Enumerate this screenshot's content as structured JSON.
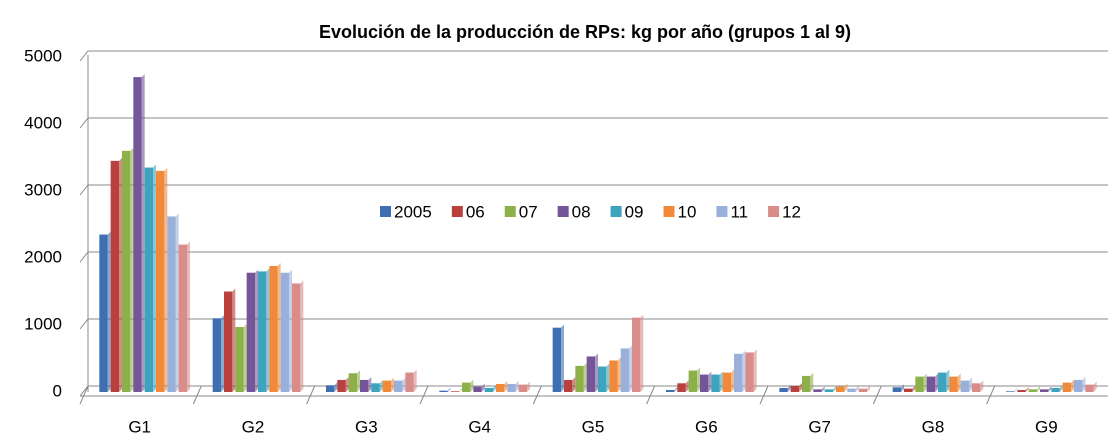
{
  "chart_data": {
    "type": "bar",
    "title": "Evolución de la producción de RPs: kg por año (grupos 1 al 9)",
    "categories": [
      "G1",
      "G2",
      "G3",
      "G4",
      "G5",
      "G6",
      "G7",
      "G8",
      "G9"
    ],
    "series": [
      {
        "name": "2005",
        "color": "#3f6fb0",
        "values": [
          2350,
          1100,
          100,
          20,
          960,
          30,
          60,
          70,
          10
        ]
      },
      {
        "name": "06",
        "color": "#b8403d",
        "values": [
          3450,
          1500,
          180,
          10,
          180,
          130,
          90,
          50,
          30
        ]
      },
      {
        "name": "07",
        "color": "#8db14a",
        "values": [
          3600,
          970,
          280,
          140,
          390,
          320,
          240,
          230,
          40
        ]
      },
      {
        "name": "08",
        "color": "#735598",
        "values": [
          4700,
          1780,
          180,
          80,
          530,
          260,
          40,
          230,
          40
        ]
      },
      {
        "name": "09",
        "color": "#3ea3bd",
        "values": [
          3350,
          1800,
          130,
          60,
          380,
          260,
          40,
          290,
          60
        ]
      },
      {
        "name": "10",
        "color": "#f0893a",
        "values": [
          3300,
          1880,
          170,
          120,
          470,
          290,
          80,
          230,
          140
        ]
      },
      {
        "name": "11",
        "color": "#99b0db",
        "values": [
          2620,
          1780,
          170,
          120,
          650,
          570,
          50,
          170,
          180
        ]
      },
      {
        "name": "12",
        "color": "#d98c8a",
        "values": [
          2200,
          1620,
          290,
          110,
          1110,
          590,
          50,
          130,
          110
        ]
      }
    ],
    "ylim": [
      0,
      5000
    ],
    "yticks": [
      0,
      1000,
      2000,
      3000,
      4000,
      5000
    ],
    "grid": true,
    "legend": "center"
  }
}
